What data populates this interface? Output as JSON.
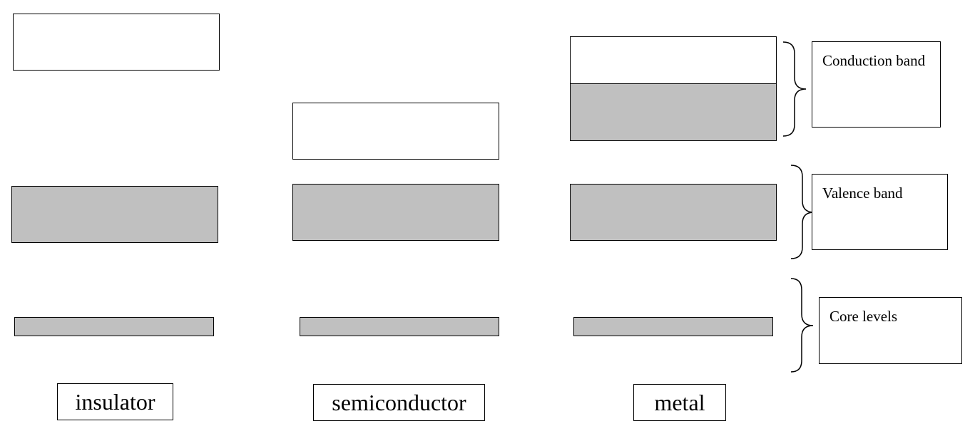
{
  "materials": {
    "insulator": "insulator",
    "semiconductor": "semiconductor",
    "metal": "metal"
  },
  "legend": {
    "conduction_band": "Conduction band",
    "valence_band": "Valence band",
    "core_levels": "Core levels"
  },
  "colors": {
    "filled_band": "#c0c0c0",
    "empty_band": "#ffffff",
    "outline": "#000000"
  }
}
